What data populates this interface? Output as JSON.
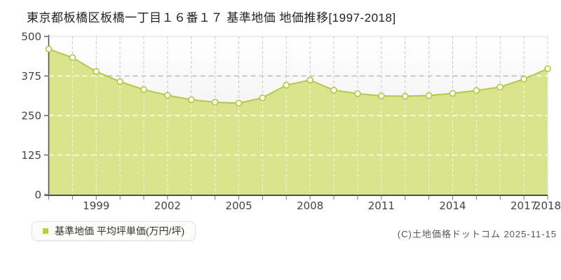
{
  "header": {
    "title": "東京都板橋区板橋一丁目１６番１７ 基準地価 地価推移[1997-2018]"
  },
  "legend": {
    "label": "基準地価 平均坪単価(万円/坪)",
    "marker_color": "#b4d33b"
  },
  "footer": {
    "copyright": "(C)土地価格ドットコム 2025-11-15"
  },
  "chart_data": {
    "type": "area",
    "title": "東京都板橋区板橋一丁目１６番１７ 基準地価 地価推移[1997-2018]",
    "x": [
      1997,
      1998,
      1999,
      2000,
      2001,
      2002,
      2003,
      2004,
      2005,
      2006,
      2007,
      2008,
      2009,
      2010,
      2011,
      2012,
      2013,
      2014,
      2015,
      2016,
      2017,
      2018
    ],
    "series": [
      {
        "name": "基準地価 平均坪単価(万円/坪)",
        "values": [
          460,
          433,
          389,
          357,
          332,
          314,
          300,
          292,
          289,
          306,
          346,
          362,
          330,
          319,
          312,
          311,
          313,
          320,
          329,
          340,
          365,
          398
        ]
      }
    ],
    "xlabel": "",
    "ylabel": "",
    "ylim": [
      0,
      500
    ],
    "y_ticks": [
      0,
      125,
      250,
      375,
      500
    ],
    "x_tick_labels": [
      "1999",
      "2002",
      "2005",
      "2008",
      "2011",
      "2014",
      "2017",
      "2018"
    ],
    "grid": true,
    "legend_position": "bottom-left",
    "colors": {
      "area_fill": "#d9e48d",
      "line": "#b3c94e",
      "marker_fill": "#fefef4",
      "marker_stroke": "#adc43e",
      "gridline": "#c9c9c9",
      "gridline_over_area": "rgba(255,255,255,0.72)",
      "axis": "#4d4d4d",
      "tick_label": "#444444",
      "plot_bg_top": "#ffffff",
      "plot_bg_bottom": "#e8e8e8"
    }
  }
}
